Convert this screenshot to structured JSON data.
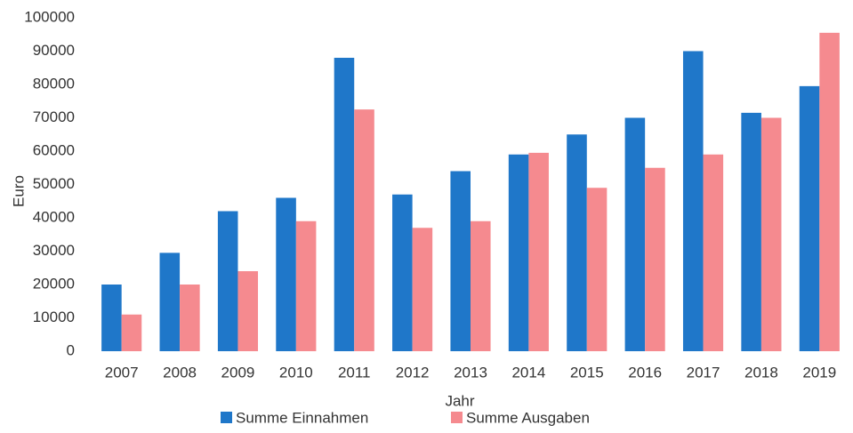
{
  "chart_data": {
    "type": "bar",
    "x_label": "Jahr",
    "y_label": "Euro",
    "categories": [
      "2007",
      "2008",
      "2009",
      "2010",
      "2011",
      "2012",
      "2013",
      "2014",
      "2015",
      "2016",
      "2017",
      "2018",
      "2019"
    ],
    "series": [
      {
        "name": "Summe Einnahmen",
        "color": "#1f77c9",
        "values": [
          20000,
          29500,
          42000,
          46000,
          88000,
          47000,
          54000,
          59000,
          65000,
          70000,
          90000,
          71500,
          79500
        ]
      },
      {
        "name": "Summe Ausgaben",
        "color": "#f58a8f",
        "values": [
          11000,
          20000,
          24000,
          39000,
          72500,
          37000,
          39000,
          59500,
          49000,
          55000,
          59000,
          70000,
          95500
        ]
      }
    ],
    "ylim": [
      0,
      100000
    ],
    "yticks": [
      0,
      10000,
      20000,
      30000,
      40000,
      50000,
      60000,
      70000,
      80000,
      90000,
      100000
    ],
    "grid": false,
    "legend": "bottom"
  }
}
